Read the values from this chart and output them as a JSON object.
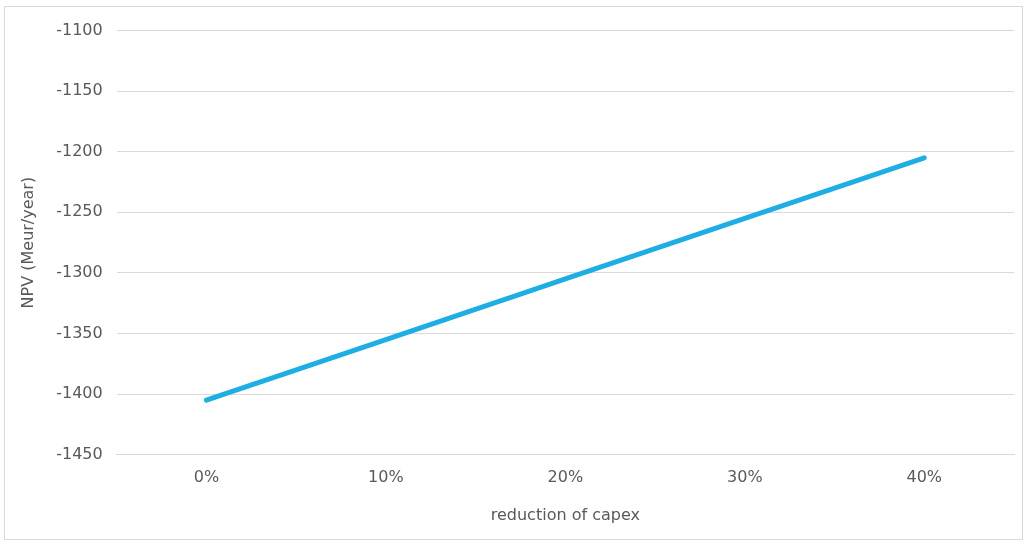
{
  "chart_data": {
    "type": "line",
    "xlabel": "reduction of capex",
    "ylabel": "NPV (Meur/year)",
    "categories": [
      "0%",
      "10%",
      "20%",
      "30%",
      "40%"
    ],
    "series": [
      {
        "color": "#1eaee4",
        "values": [
          -1405,
          -1355,
          -1305,
          -1255,
          -1205
        ]
      }
    ],
    "ylim": [
      -1450,
      -1100
    ],
    "yticks": [
      -1450,
      -1400,
      -1350,
      -1300,
      -1250,
      -1200,
      -1150,
      -1100
    ],
    "grid": "y",
    "legend": false,
    "marker": "none",
    "line_style": "solid"
  }
}
